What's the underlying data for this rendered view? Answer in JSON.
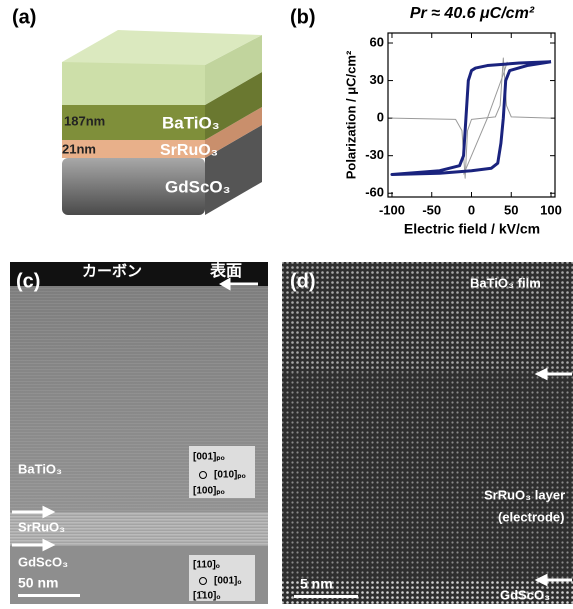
{
  "panel_a": {
    "label": "(a)",
    "thickness_top": "187nm",
    "thickness_mid": "21nm",
    "layer_top": "BaTiO₃",
    "layer_mid": "SrRuO₃",
    "layer_bottom": "GdScO₃"
  },
  "chart_data": {
    "type": "line",
    "panel_label": "(b)",
    "title": "Pr ≈ 40.6  μC/cm²",
    "xlabel": "Electric field / kV/cm",
    "ylabel": "Polarization / μC/cm²",
    "xlim": [
      -105,
      105
    ],
    "xticks": [
      -100,
      -50,
      0,
      50,
      100
    ],
    "ylim": [
      -63,
      68
    ],
    "yticks": [
      -60,
      -30,
      0,
      30,
      60
    ],
    "series": [
      {
        "color": "#9a9a9a",
        "width": 1,
        "x": [
          -100,
          -20,
          -12,
          -8,
          -5,
          0,
          30,
          36,
          40,
          44,
          50,
          100
        ],
        "values": [
          0,
          -1,
          -10,
          -48,
          -10,
          -1,
          1,
          10,
          48,
          10,
          1,
          0
        ]
      },
      {
        "color": "#9a9a9a",
        "width": 1,
        "x": [
          -10,
          0,
          20,
          40,
          45
        ],
        "values": [
          -45,
          -30,
          0,
          35,
          45
        ]
      },
      {
        "color": "#1a237e",
        "width": 3,
        "x": [
          100,
          60,
          20,
          5,
          0,
          -4,
          -7,
          -10,
          -15,
          -40,
          -100,
          -40,
          0,
          25,
          33,
          37,
          40,
          43,
          48,
          70,
          100
        ],
        "values": [
          45,
          44,
          42,
          40,
          38,
          30,
          0,
          -30,
          -38,
          -42,
          -45,
          -44,
          -42,
          -40,
          -36,
          -20,
          0,
          30,
          38,
          42,
          45
        ]
      }
    ]
  },
  "panel_c": {
    "label": "(c)",
    "carbon": "カーボン",
    "surface": "表面",
    "layer_top": "BaTiO₃",
    "layer_mid": "SrRuO₃",
    "layer_bottom": "GdScO₃",
    "scale": "50 nm",
    "axes_top": [
      "[001]ₚₒ",
      "[010]ₚₒ",
      "[100]ₚₒ"
    ],
    "axes_bottom": [
      "[110]ₒ",
      "[001]ₒ",
      "[1̄10]ₒ"
    ]
  },
  "panel_d": {
    "label": "(d)",
    "film": "BaTiO₃ film",
    "layer": "SrRuO₃ layer",
    "electrode": "(electrode)",
    "scale": "5 nm",
    "substrate": "GdScO₃"
  }
}
